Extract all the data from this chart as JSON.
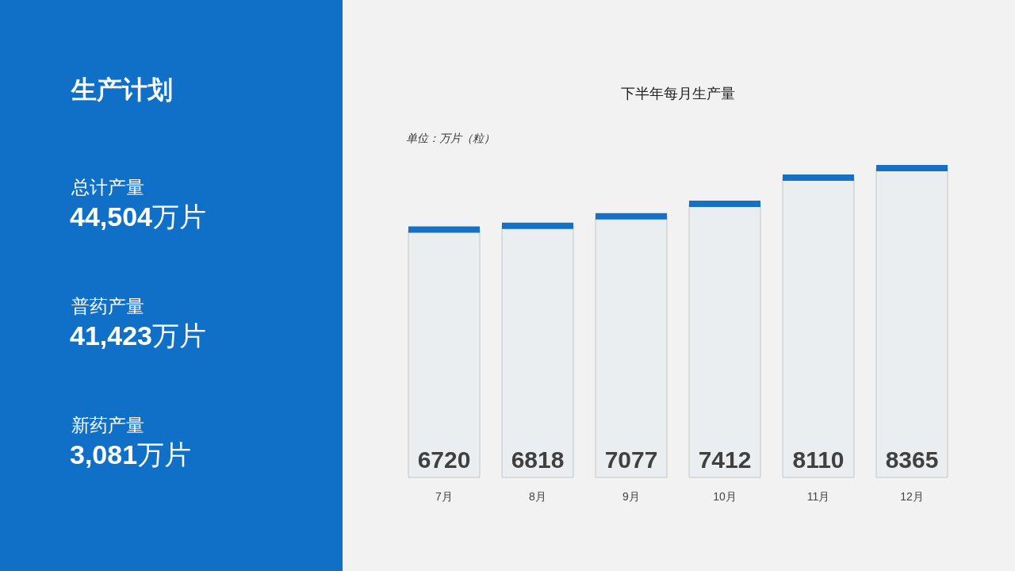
{
  "chart_data": [
    {
      "type": "other",
      "title": "生产计划",
      "annotations": [
        "总计产量",
        "44,504万片",
        "普药产量",
        "41,423万片",
        "新药产量",
        "3,081万片"
      ]
    },
    {
      "type": "bar",
      "title": "下半年每月生产量",
      "annotations": [
        "单位：万片（粒）"
      ],
      "categories": [
        "7月",
        "8月",
        "9月",
        "10月",
        "11月",
        "12月"
      ],
      "values": [
        6720,
        6818,
        7077,
        7412,
        8110,
        8365
      ],
      "color": "#1570c6",
      "data_labels": true
    }
  ]
}
